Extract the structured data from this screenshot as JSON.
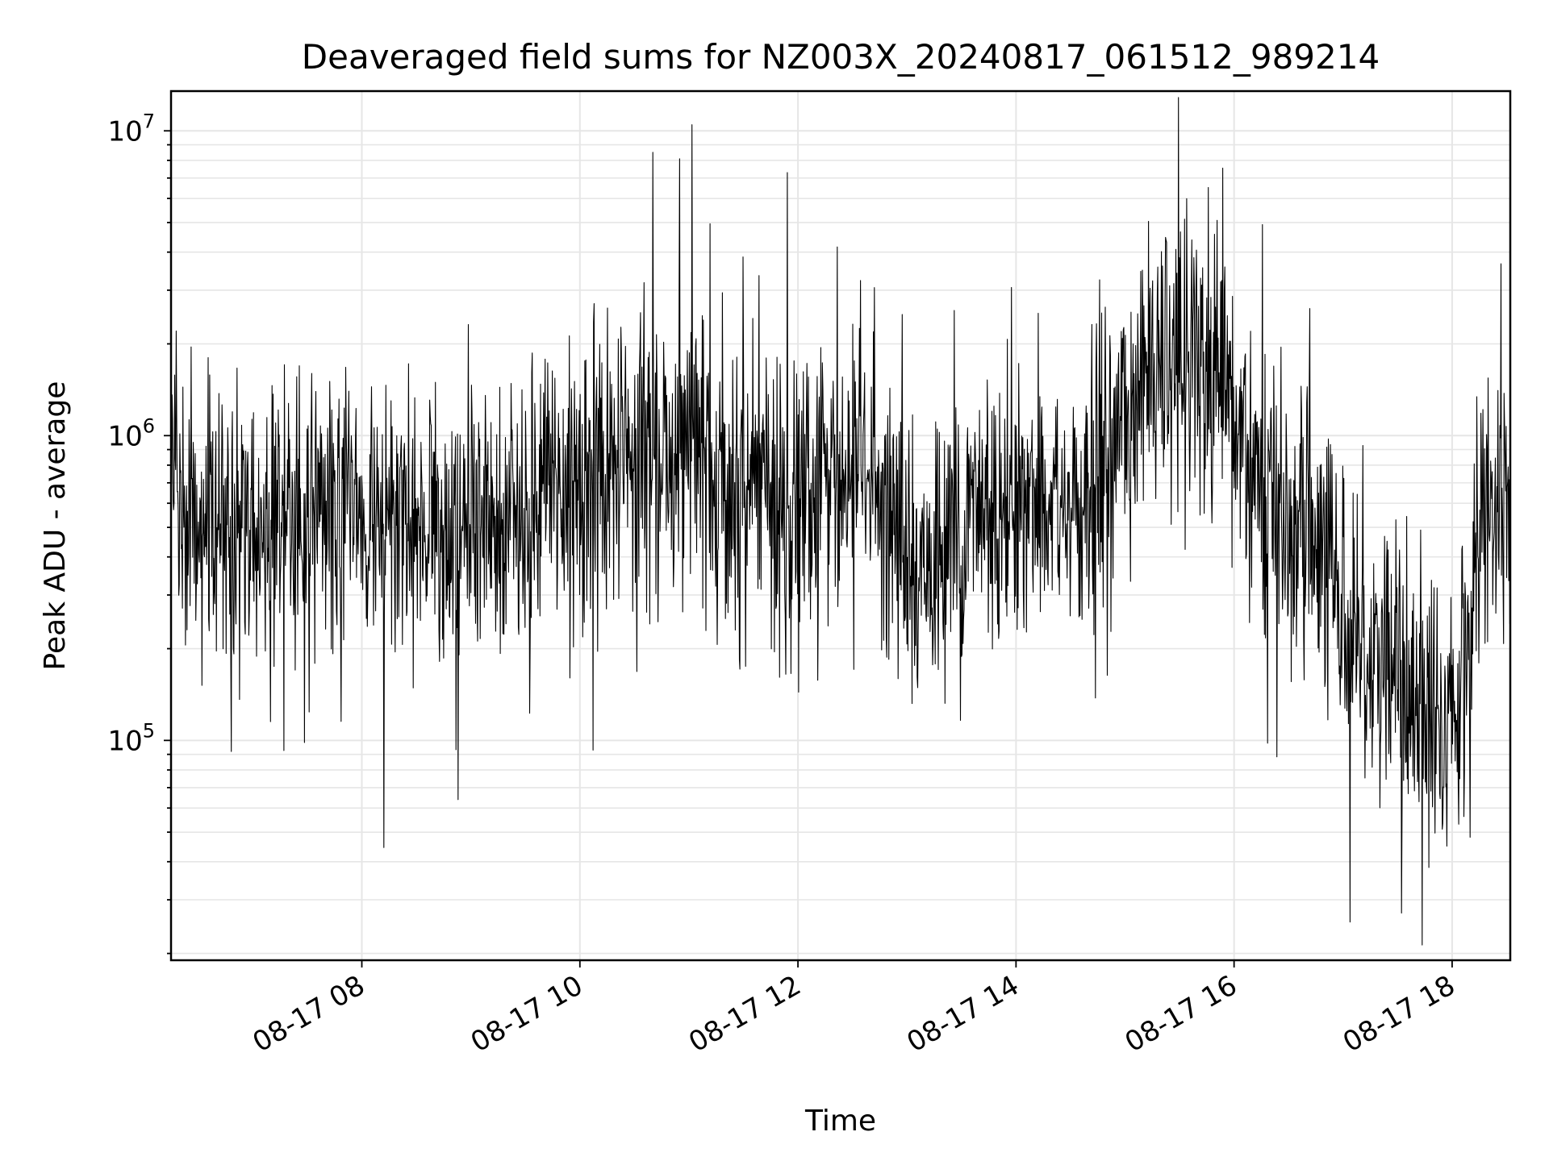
{
  "chart_data": {
    "type": "line",
    "title": "Deaveraged field sums for NZ003X_20240817_061512_989214",
    "xlabel": "Time",
    "ylabel": "Peak ADU - average",
    "yscale": "log",
    "ylim": [
      19000,
      13500000
    ],
    "xlim": [
      "2024-08-17 06:15",
      "2024-08-17 18:32"
    ],
    "grid": true,
    "line_color": "#000000",
    "grid_color": "#e6e6e6",
    "x_ticks": [
      {
        "value": "2024-08-17 08:00",
        "label": "08-17 08"
      },
      {
        "value": "2024-08-17 10:00",
        "label": "08-17 10"
      },
      {
        "value": "2024-08-17 12:00",
        "label": "08-17 12"
      },
      {
        "value": "2024-08-17 14:00",
        "label": "08-17 14"
      },
      {
        "value": "2024-08-17 16:00",
        "label": "08-17 16"
      },
      {
        "value": "2024-08-17 18:00",
        "label": "08-17 18"
      }
    ],
    "y_ticks": [
      {
        "value": 100000,
        "base": "10",
        "exp": "5"
      },
      {
        "value": 1000000,
        "base": "10",
        "exp": "6"
      },
      {
        "value": 10000000,
        "base": "10",
        "exp": "7"
      }
    ],
    "series": [
      {
        "x": [
          "2024-08-17 06:15",
          "2024-08-17 06:30",
          "2024-08-17 06:45",
          "2024-08-17 07:00",
          "2024-08-17 07:15",
          "2024-08-17 07:30",
          "2024-08-17 07:45",
          "2024-08-17 08:00",
          "2024-08-17 08:15",
          "2024-08-17 08:30",
          "2024-08-17 08:45",
          "2024-08-17 09:00",
          "2024-08-17 09:15",
          "2024-08-17 09:30",
          "2024-08-17 09:45",
          "2024-08-17 10:00",
          "2024-08-17 10:15",
          "2024-08-17 10:30",
          "2024-08-17 10:45",
          "2024-08-17 11:00",
          "2024-08-17 11:15",
          "2024-08-17 11:30",
          "2024-08-17 11:45",
          "2024-08-17 12:00",
          "2024-08-17 12:15",
          "2024-08-17 12:30",
          "2024-08-17 12:45",
          "2024-08-17 13:00",
          "2024-08-17 13:15",
          "2024-08-17 13:30",
          "2024-08-17 13:45",
          "2024-08-17 14:00",
          "2024-08-17 14:15",
          "2024-08-17 14:30",
          "2024-08-17 14:45",
          "2024-08-17 15:00",
          "2024-08-17 15:15",
          "2024-08-17 15:30",
          "2024-08-17 15:45",
          "2024-08-17 16:00",
          "2024-08-17 16:15",
          "2024-08-17 16:30",
          "2024-08-17 16:45",
          "2024-08-17 17:00",
          "2024-08-17 17:15",
          "2024-08-17 17:30",
          "2024-08-17 17:45",
          "2024-08-17 18:00",
          "2024-08-17 18:15",
          "2024-08-17 18:30"
        ],
        "y": [
          750000,
          600000,
          500000,
          550000,
          500000,
          450000,
          550000,
          550000,
          500000,
          600000,
          500000,
          550000,
          500000,
          550000,
          650000,
          700000,
          700000,
          800000,
          800000,
          900000,
          750000,
          700000,
          650000,
          550000,
          650000,
          700000,
          700000,
          400000,
          350000,
          500000,
          600000,
          650000,
          600000,
          550000,
          600000,
          1200000,
          1700000,
          1800000,
          1400000,
          1100000,
          700000,
          500000,
          400000,
          300000,
          200000,
          150000,
          120000,
          120000,
          400000,
          600000
        ]
      }
    ]
  }
}
